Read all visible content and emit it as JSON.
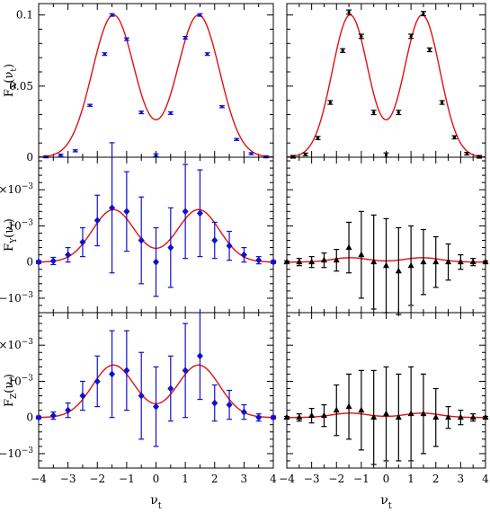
{
  "chart_data": [
    {
      "panel": "FX-left",
      "type": "line",
      "ylabel_base": "F",
      "ylabel_sub": "X",
      "ylabel_arg": "ν",
      "ylabel_argsub": "t",
      "ylim": [
        0,
        0.108
      ],
      "xlim": [
        -4,
        4
      ],
      "yticks": [
        {
          "v": 0,
          "t": "0"
        },
        {
          "v": 0.05,
          "t": "0.05"
        },
        {
          "v": 0.1,
          "t": "0.1"
        }
      ],
      "marker": "dot",
      "color": "#1010d0",
      "points": [
        [
          -3.75,
          0.0003,
          0.0007
        ],
        [
          -3.25,
          0.0015,
          0.0007
        ],
        [
          -2.75,
          0.0045,
          0.0007
        ],
        [
          -2.25,
          0.0365,
          0.0007
        ],
        [
          -1.75,
          0.0725,
          0.0009
        ],
        [
          -1.5,
          0.1,
          0.0009
        ],
        [
          -1.0,
          0.083,
          0.0009
        ],
        [
          -0.5,
          0.0315,
          0.0009
        ],
        [
          0.0,
          0.0015,
          0.0009
        ],
        [
          0.5,
          0.031,
          0.0009
        ],
        [
          1.0,
          0.084,
          0.0009
        ],
        [
          1.5,
          0.1,
          0.0009
        ],
        [
          1.75,
          0.0725,
          0.0009
        ],
        [
          2.25,
          0.0355,
          0.0007
        ],
        [
          2.75,
          0.0125,
          0.0007
        ],
        [
          3.25,
          0.0025,
          0.0007
        ],
        [
          3.75,
          0.0003,
          0.0007
        ]
      ],
      "curve": {
        "type": "fx",
        "amp": 0.1,
        "mu": 1.45,
        "sigma": 0.72
      }
    },
    {
      "panel": "FX-right",
      "type": "line",
      "ylim": [
        0,
        0.108
      ],
      "xlim": [
        -4,
        4
      ],
      "marker": "dot",
      "color": "#000000",
      "points": [
        [
          -3.75,
          0.0003,
          0.0009
        ],
        [
          -3.25,
          0.002,
          0.0009
        ],
        [
          -2.75,
          0.0135,
          0.0011
        ],
        [
          -2.25,
          0.0385,
          0.0013
        ],
        [
          -1.75,
          0.075,
          0.0013
        ],
        [
          -1.5,
          0.102,
          0.0015
        ],
        [
          -1.0,
          0.085,
          0.0015
        ],
        [
          -0.5,
          0.0315,
          0.0015
        ],
        [
          0.0,
          0.0015,
          0.0015
        ],
        [
          0.5,
          0.0315,
          0.0015
        ],
        [
          1.0,
          0.085,
          0.0015
        ],
        [
          1.5,
          0.101,
          0.0015
        ],
        [
          1.75,
          0.0755,
          0.0013
        ],
        [
          2.25,
          0.0385,
          0.0013
        ],
        [
          2.75,
          0.014,
          0.0011
        ],
        [
          3.25,
          0.0025,
          0.0009
        ],
        [
          3.75,
          0.0003,
          0.0009
        ]
      ],
      "curve": {
        "type": "fx",
        "amp": 0.1,
        "mu": 1.45,
        "sigma": 0.72
      }
    },
    {
      "panel": "FY-left",
      "type": "line",
      "ylabel_base": "F",
      "ylabel_sub": "Y",
      "ylabel_arg": "ν",
      "ylabel_argsub": "t",
      "ylim": [
        -0.0014,
        0.0029
      ],
      "xlim": [
        -4,
        4
      ],
      "yticks": [
        {
          "v": 0.002,
          "t": "2×10",
          "e": "−3"
        },
        {
          "v": 0.001,
          "t": "10",
          "e": "−3"
        },
        {
          "v": 0,
          "t": "0"
        },
        {
          "v": -0.001,
          "t": "−10",
          "e": "−3"
        }
      ],
      "marker": "diamond",
      "color": "#1010d0",
      "points": [
        [
          -4.0,
          0.0,
          4e-05
        ],
        [
          -3.5,
          3e-05,
          0.0001
        ],
        [
          -3.0,
          0.0002,
          0.0002
        ],
        [
          -2.5,
          0.00055,
          0.0004
        ],
        [
          -2.0,
          0.00115,
          0.0007
        ],
        [
          -1.5,
          0.0015,
          0.0018
        ],
        [
          -1.0,
          0.0014,
          0.0011
        ],
        [
          -0.5,
          0.0006,
          0.0012
        ],
        [
          0.0,
          0.0,
          0.00095
        ],
        [
          0.5,
          0.0004,
          0.0011
        ],
        [
          1.0,
          0.0014,
          0.0013
        ],
        [
          1.5,
          0.00135,
          0.0012
        ],
        [
          2.0,
          0.0006,
          0.0005
        ],
        [
          2.5,
          0.00045,
          0.0004
        ],
        [
          3.0,
          0.0002,
          0.0002
        ],
        [
          3.5,
          5e-05,
          0.0001
        ],
        [
          4.0,
          0.0,
          4e-05
        ]
      ],
      "curve": {
        "type": "fx",
        "amp": 0.00145,
        "mu": 1.45,
        "sigma": 0.72
      }
    },
    {
      "panel": "FY-right",
      "type": "line",
      "ylim": [
        -0.0014,
        0.0029
      ],
      "xlim": [
        -4,
        4
      ],
      "marker": "triangle",
      "color": "#000000",
      "points": [
        [
          -4.0,
          0.0,
          3e-05
        ],
        [
          -3.5,
          0.0,
          0.0001
        ],
        [
          -3.0,
          0.0,
          0.00015
        ],
        [
          -2.5,
          5e-05,
          0.0002
        ],
        [
          -2.0,
          5e-05,
          0.0003
        ],
        [
          -1.5,
          0.0004,
          0.0007
        ],
        [
          -1.0,
          0.0002,
          0.0012
        ],
        [
          -0.5,
          0.0,
          0.0013
        ],
        [
          0.0,
          -0.0001,
          0.0013
        ],
        [
          0.5,
          -0.00025,
          0.0012
        ],
        [
          1.0,
          -0.0001,
          0.0011
        ],
        [
          1.5,
          0.0,
          0.0009
        ],
        [
          2.0,
          0.0,
          0.0007
        ],
        [
          2.5,
          0.0,
          0.0005
        ],
        [
          3.0,
          0.0,
          0.0002
        ],
        [
          3.5,
          0.0,
          0.0001
        ],
        [
          4.0,
          0.0,
          3e-05
        ]
      ],
      "curve": {
        "type": "fx",
        "amp": 0.00012,
        "mu": 1.45,
        "sigma": 0.72
      }
    },
    {
      "panel": "FZ-left",
      "type": "line",
      "ylabel_base": "F",
      "ylabel_sub": "Z",
      "ylabel_arg": "ν",
      "ylabel_argsub": "t",
      "ylim": [
        -0.0014,
        0.0029
      ],
      "xlim": [
        -4,
        4
      ],
      "yticks": [
        {
          "v": 0.002,
          "t": "2×10",
          "e": "−3"
        },
        {
          "v": 0.001,
          "t": "10",
          "e": "−3"
        },
        {
          "v": 0,
          "t": "0"
        },
        {
          "v": -0.001,
          "t": "−10",
          "e": "−3"
        }
      ],
      "xticks": [
        -4,
        -3,
        -2,
        -1,
        0,
        1,
        2,
        3,
        4
      ],
      "xticklabels": [
        "−4",
        "−3",
        "−2",
        "−1",
        "0",
        "1",
        "2",
        "3",
        "4"
      ],
      "xlabel_base": "ν",
      "xlabel_sub": "t",
      "marker": "diamond",
      "color": "#1010d0",
      "points": [
        [
          -4.0,
          0.0,
          4e-05
        ],
        [
          -3.5,
          5e-05,
          0.0001
        ],
        [
          -3.0,
          0.0002,
          0.0002
        ],
        [
          -2.5,
          0.0006,
          0.0004
        ],
        [
          -2.0,
          0.001,
          0.0007
        ],
        [
          -1.5,
          0.0012,
          0.0012
        ],
        [
          -1.0,
          0.0013,
          0.0011
        ],
        [
          -0.5,
          0.0006,
          0.0012
        ],
        [
          0.0,
          0.0003,
          0.0011
        ],
        [
          0.5,
          0.0008,
          0.0009
        ],
        [
          1.0,
          0.0013,
          0.0013
        ],
        [
          1.5,
          0.0017,
          0.0012
        ],
        [
          2.0,
          0.0004,
          0.0005
        ],
        [
          2.5,
          0.00035,
          0.0004
        ],
        [
          3.0,
          0.00015,
          0.0002
        ],
        [
          3.5,
          0.0,
          0.0001
        ],
        [
          4.0,
          0.0,
          4e-05
        ]
      ],
      "curve": {
        "type": "fx",
        "amp": 0.00145,
        "mu": 1.45,
        "sigma": 0.72
      }
    },
    {
      "panel": "FZ-right",
      "type": "line",
      "ylim": [
        -0.0014,
        0.0029
      ],
      "xlim": [
        -4,
        4
      ],
      "xticks": [
        -4,
        -3,
        -2,
        -1,
        0,
        1,
        2,
        3,
        4
      ],
      "xticklabels": [
        "−4",
        "−3",
        "−2",
        "−1",
        "0",
        "1",
        "2",
        "3",
        "4"
      ],
      "xlabel_base": "ν",
      "xlabel_sub": "t",
      "marker": "triangle",
      "color": "#000000",
      "points": [
        [
          -4.0,
          0.0,
          3e-05
        ],
        [
          -3.5,
          0.0,
          0.0001
        ],
        [
          -3.0,
          5e-05,
          0.0002
        ],
        [
          -2.5,
          5e-05,
          0.0003
        ],
        [
          -2.0,
          0.0002,
          0.0007
        ],
        [
          -1.5,
          0.0003,
          0.0009
        ],
        [
          -1.0,
          0.0002,
          0.0011
        ],
        [
          -0.5,
          0.0,
          0.0013
        ],
        [
          0.0,
          0.0001,
          0.0013
        ],
        [
          0.5,
          0.0,
          0.0012
        ],
        [
          1.0,
          0.0001,
          0.0013
        ],
        [
          1.5,
          0.0001,
          0.0011
        ],
        [
          2.0,
          0.0,
          0.0008
        ],
        [
          2.5,
          0.0,
          0.0003
        ],
        [
          3.0,
          0.0,
          0.0002
        ],
        [
          3.5,
          0.0,
          0.0001
        ],
        [
          4.0,
          0.0,
          3e-05
        ]
      ],
      "curve": {
        "type": "fx",
        "amp": 0.00012,
        "mu": 1.45,
        "sigma": 0.72
      }
    }
  ],
  "colors": {
    "fit": "#e01010",
    "frame": "#000000"
  }
}
